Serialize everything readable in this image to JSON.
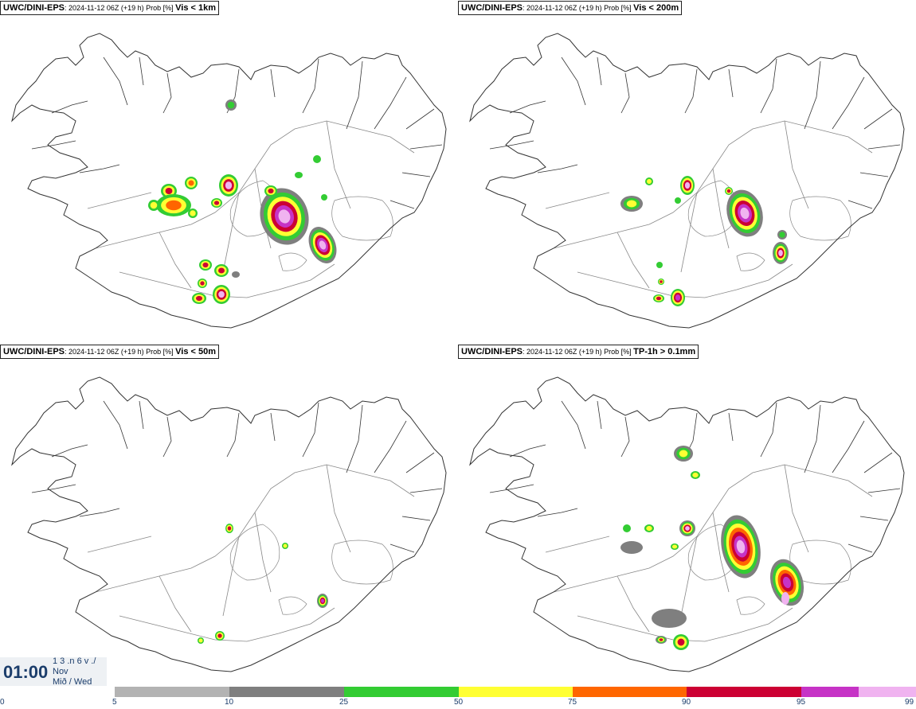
{
  "panels": [
    {
      "model": "UWC/DINI-EPS",
      "meta": ": 2024-11-12 06Z (+19 h) Prob [%] ",
      "variable": "Vis < 1km"
    },
    {
      "model": "UWC/DINI-EPS",
      "meta": ": 2024-11-12 06Z (+19 h) Prob [%] ",
      "variable": "Vis < 200m"
    },
    {
      "model": "UWC/DINI-EPS",
      "meta": ": 2024-11-12 06Z (+19 h) Prob [%] ",
      "variable": "Vis < 50m"
    },
    {
      "model": "UWC/DINI-EPS",
      "meta": ": 2024-11-12 06Z (+19 h) Prob [%] ",
      "variable": "TP-1h > 0.1mm"
    }
  ],
  "time": {
    "clock": "01:00",
    "line1": "1 3 .n 6 v ./",
    "line2": "Nov",
    "line3": "Mið / Wed"
  },
  "colorbar": {
    "ticks": [
      "0",
      "5",
      "10",
      "25",
      "50",
      "75",
      "90",
      "95",
      "99"
    ],
    "colors": [
      "#b3b3b3",
      "#7f7f7f",
      "#33cc33",
      "#ffff33",
      "#ff6600",
      "#cc0033",
      "#c633c6",
      "#f0b3f0"
    ]
  },
  "map_colors": {
    "outline": "#333333",
    "roads": "#888888",
    "gray": "#7f7f7f",
    "green": "#33cc33",
    "yellow": "#ffff33",
    "orange": "#ff6600",
    "red": "#cc0033",
    "magenta": "#c633c6",
    "pink": "#f0b3f0"
  }
}
